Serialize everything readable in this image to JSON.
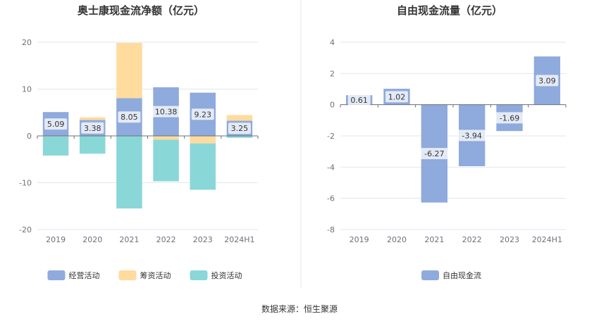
{
  "source_label": "数据来源：恒生聚源",
  "chart_data": [
    {
      "type": "bar",
      "stacked": true,
      "title": "奥士康现金流净额（亿元）",
      "categories": [
        "2019",
        "2020",
        "2021",
        "2022",
        "2023",
        "2024H1"
      ],
      "ylim": [
        -20,
        20
      ],
      "yticks": [
        -20,
        -10,
        0,
        10,
        20
      ],
      "grid": true,
      "legend_position": "bottom",
      "series": [
        {
          "name": "经营活动",
          "color": "#8faadc",
          "values": [
            5.09,
            3.38,
            8.05,
            10.38,
            9.23,
            3.25
          ],
          "labels": [
            "5.09",
            "3.38",
            "8.05",
            "10.38",
            "9.23",
            "3.25"
          ]
        },
        {
          "name": "筹资活动",
          "color": "#ffdb9d",
          "values": [
            -0.1,
            0.6,
            11.8,
            -0.8,
            -1.6,
            1.2
          ]
        },
        {
          "name": "投资活动",
          "color": "#8ad7d8",
          "values": [
            -4.1,
            -3.8,
            -15.5,
            -8.9,
            -9.9,
            -0.4
          ]
        }
      ]
    },
    {
      "type": "bar",
      "title": "自由现金流量（亿元）",
      "categories": [
        "2019",
        "2020",
        "2021",
        "2022",
        "2023",
        "2024H1"
      ],
      "ylim": [
        -8,
        4
      ],
      "yticks": [
        -8,
        -6,
        -4,
        -2,
        0,
        2,
        4
      ],
      "grid": true,
      "legend_position": "bottom",
      "series": [
        {
          "name": "自由现金流",
          "color": "#8faadc",
          "values": [
            0.61,
            1.02,
            -6.27,
            -3.94,
            -1.69,
            3.09
          ],
          "labels": [
            "0.61",
            "1.02",
            "-6.27",
            "-3.94",
            "-1.69",
            "3.09"
          ]
        }
      ]
    }
  ]
}
